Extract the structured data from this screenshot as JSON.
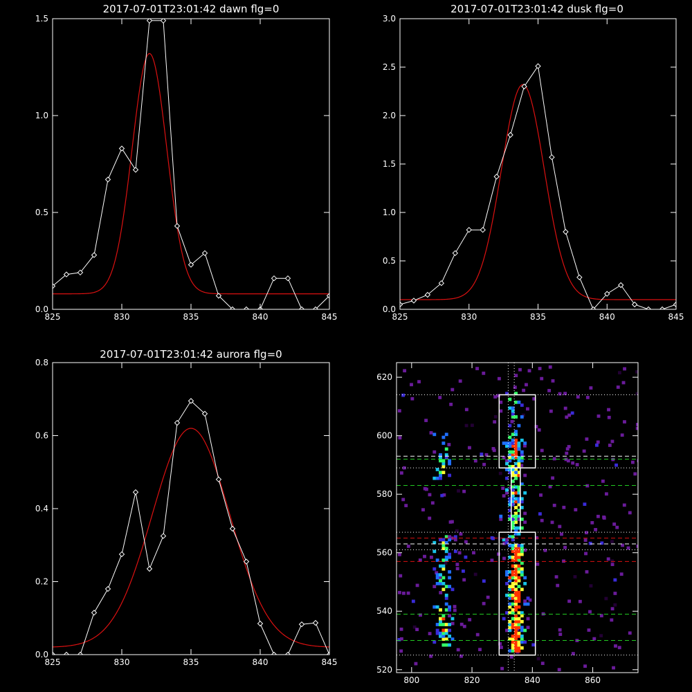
{
  "chart_data": [
    {
      "type": "line",
      "title": "2017-07-01T23:01:42 dawn flg=0",
      "xlim": [
        825,
        845
      ],
      "ylim": [
        0,
        1.5
      ],
      "xticks": [
        825,
        830,
        835,
        840,
        845
      ],
      "xtick_labels": [
        "825",
        "830",
        "835",
        "840",
        "845"
      ],
      "yticks": [
        0,
        0.5,
        1.0,
        1.5
      ],
      "ytick_labels": [
        "0.0",
        "0.5",
        "1.0",
        "1.5"
      ],
      "series": [
        {
          "kind": "data",
          "color": "#ffffff",
          "marker": "diamond",
          "x": [
            825,
            826,
            827,
            828,
            829,
            830,
            831,
            832,
            833,
            834,
            835,
            836,
            837,
            838,
            839,
            840,
            841,
            842,
            843,
            844,
            845
          ],
          "y": [
            0.12,
            0.18,
            0.19,
            0.28,
            0.67,
            0.83,
            0.72,
            1.49,
            1.49,
            0.43,
            0.23,
            0.29,
            0.07,
            0.0,
            0.0,
            0.0,
            0.16,
            0.16,
            0.0,
            0.0,
            0.07
          ]
        },
        {
          "kind": "fit",
          "color": "#dd1111",
          "gaussian": {
            "center": 832.0,
            "sigma": 1.25,
            "amplitude": 1.24,
            "offset": 0.08
          }
        }
      ]
    },
    {
      "type": "line",
      "title": "2017-07-01T23:01:42 dusk flg=0",
      "xlim": [
        825,
        845
      ],
      "ylim": [
        0,
        3.0
      ],
      "xticks": [
        825,
        830,
        835,
        840,
        845
      ],
      "xtick_labels": [
        "825",
        "830",
        "835",
        "840",
        "845"
      ],
      "yticks": [
        0,
        0.5,
        1.0,
        1.5,
        2.0,
        2.5,
        3.0
      ],
      "ytick_labels": [
        "0.0",
        "0.5",
        "1.0",
        "1.5",
        "2.0",
        "2.5",
        "3.0"
      ],
      "series": [
        {
          "kind": "data",
          "color": "#ffffff",
          "marker": "diamond",
          "x": [
            825,
            826,
            827,
            828,
            829,
            830,
            831,
            832,
            833,
            834,
            835,
            836,
            837,
            838,
            839,
            840,
            841,
            842,
            843,
            844,
            845
          ],
          "y": [
            0.05,
            0.09,
            0.15,
            0.27,
            0.58,
            0.82,
            0.82,
            1.37,
            1.8,
            2.3,
            2.51,
            1.57,
            0.8,
            0.33,
            0.0,
            0.16,
            0.25,
            0.05,
            0.0,
            0.0,
            0.05
          ]
        },
        {
          "kind": "fit",
          "color": "#dd1111",
          "gaussian": {
            "center": 833.9,
            "sigma": 1.55,
            "amplitude": 2.22,
            "offset": 0.1
          }
        }
      ]
    },
    {
      "type": "line",
      "title": "2017-07-01T23:01:42 aurora flg=0",
      "xlim": [
        825,
        845
      ],
      "ylim": [
        0,
        0.8
      ],
      "xticks": [
        825,
        830,
        835,
        840,
        845
      ],
      "xtick_labels": [
        "825",
        "830",
        "835",
        "840",
        "845"
      ],
      "yticks": [
        0,
        0.2,
        0.4,
        0.6,
        0.8
      ],
      "ytick_labels": [
        "0.0",
        "0.2",
        "0.4",
        "0.6",
        "0.8"
      ],
      "series": [
        {
          "kind": "data",
          "color": "#ffffff",
          "marker": "diamond",
          "x": [
            825,
            826,
            827,
            828,
            829,
            830,
            831,
            832,
            833,
            834,
            835,
            836,
            837,
            838,
            839,
            840,
            841,
            842,
            843,
            844,
            845
          ],
          "y": [
            0.0,
            0.0,
            0.0,
            0.115,
            0.18,
            0.275,
            0.445,
            0.235,
            0.325,
            0.635,
            0.695,
            0.66,
            0.48,
            0.345,
            0.255,
            0.085,
            0.0,
            0.0,
            0.083,
            0.087,
            0.0
          ]
        },
        {
          "kind": "fit",
          "color": "#dd1111",
          "gaussian": {
            "center": 835.0,
            "sigma": 2.8,
            "amplitude": 0.6,
            "offset": 0.02
          }
        }
      ]
    },
    {
      "type": "heatmap",
      "title": "",
      "xlim": [
        795,
        875
      ],
      "ylim": [
        519,
        625
      ],
      "xticks": [
        800,
        820,
        840,
        860
      ],
      "xtick_labels": [
        "800",
        "820",
        "840",
        "860"
      ],
      "yticks": [
        520,
        540,
        560,
        580,
        600,
        620
      ],
      "ytick_labels": [
        "520",
        "540",
        "560",
        "580",
        "600",
        "620"
      ],
      "colorscale": [
        "#220033",
        "#6a1b9a",
        "#3a2bd8",
        "#1f6fff",
        "#17c3e8",
        "#33ff66",
        "#ffff33",
        "#ff3300"
      ],
      "columns": [
        {
          "x": 810,
          "y": [
            528,
            542
          ],
          "intensity": 0.45,
          "density": 0.55
        },
        {
          "x": 810,
          "y": [
            542,
            565
          ],
          "intensity": 0.35,
          "density": 0.35
        },
        {
          "x": 810,
          "y": [
            585,
            600
          ],
          "intensity": 0.35,
          "density": 0.35
        },
        {
          "x": 834,
          "y": [
            526,
            562
          ],
          "intensity": 0.75,
          "density": 0.9
        },
        {
          "x": 834,
          "y": [
            568,
            582
          ],
          "intensity": 0.45,
          "density": 0.6
        },
        {
          "x": 834,
          "y": [
            586,
            598
          ],
          "intensity": 0.6,
          "density": 0.7
        },
        {
          "x": 833,
          "y": [
            562,
            614
          ],
          "intensity": 0.25,
          "density": 0.3
        }
      ],
      "vertical_lines": [
        {
          "x": 832,
          "color": "#ffffff",
          "style": "dotted"
        },
        {
          "x": 834,
          "color": "#ffffff",
          "style": "dotted"
        }
      ],
      "horizontal_lines": [
        {
          "y": 614,
          "color": "#ffffff",
          "style": "dotted"
        },
        {
          "y": 593,
          "color": "#ffffff",
          "style": "dashed"
        },
        {
          "y": 592,
          "color": "#22cc22",
          "style": "dashed"
        },
        {
          "y": 589,
          "color": "#ffffff",
          "style": "dotted"
        },
        {
          "y": 583,
          "color": "#22cc22",
          "style": "dashed"
        },
        {
          "y": 567,
          "color": "#ffffff",
          "style": "dotted"
        },
        {
          "y": 565,
          "color": "#dd1111",
          "style": "dashed"
        },
        {
          "y": 563,
          "color": "#ffffff",
          "style": "dashed"
        },
        {
          "y": 561,
          "color": "#ffffff",
          "style": "dotted"
        },
        {
          "y": 557,
          "color": "#dd1111",
          "style": "dashed"
        },
        {
          "y": 539,
          "color": "#22cc22",
          "style": "dashed"
        },
        {
          "y": 530,
          "color": "#22cc22",
          "style": "dashed"
        },
        {
          "y": 525,
          "color": "#ffffff",
          "style": "dotted"
        }
      ],
      "boxes": [
        {
          "x": [
            829,
            841
          ],
          "y": [
            589,
            614
          ],
          "color": "#ffffff"
        },
        {
          "x": [
            833,
            836
          ],
          "y": [
            567,
            589
          ],
          "color": "#ffffff"
        },
        {
          "x": [
            829,
            841
          ],
          "y": [
            525,
            567
          ],
          "color": "#ffffff"
        }
      ]
    }
  ]
}
